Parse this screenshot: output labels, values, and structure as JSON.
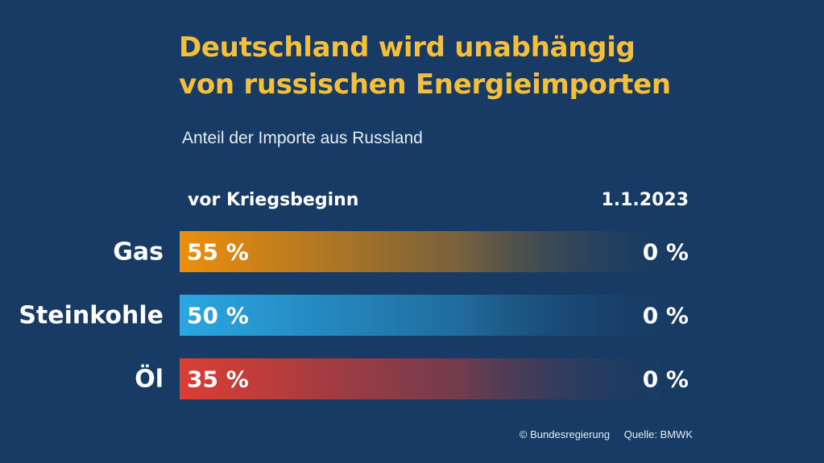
{
  "chart_data": {
    "type": "bar",
    "title_lines": [
      "Deutschland wird unabhängig",
      "von russischen Energieimporten"
    ],
    "subtitle": "Anteil der Importe aus Russland",
    "column_labels": {
      "start": "vor Kriegsbeginn",
      "end": "1.1.2023"
    },
    "categories": [
      "Gas",
      "Steinkohle",
      "Öl"
    ],
    "series": [
      {
        "name": "vor Kriegsbeginn",
        "values": [
          55,
          50,
          35
        ],
        "labels": [
          "55 %",
          "50 %",
          "35 %"
        ]
      },
      {
        "name": "1.1.2023",
        "values": [
          0,
          0,
          0
        ],
        "labels": [
          "0 %",
          "0 %",
          "0 %"
        ]
      }
    ],
    "bar_colors": [
      "#ed8f0b",
      "#2aa7e2",
      "#dc3d33"
    ],
    "background_color": "#173b64",
    "title_color": "#f5bf3b"
  },
  "credits": {
    "copyright": "© Bundesregierung",
    "source": "Quelle: BMWK"
  }
}
